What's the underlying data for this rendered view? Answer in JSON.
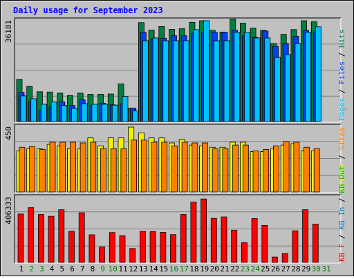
{
  "chart_data": {
    "type": "bar",
    "title": "Daily usage for September 2023",
    "categories": [
      "1",
      "2",
      "3",
      "4",
      "5",
      "6",
      "7",
      "8",
      "9",
      "10",
      "11",
      "12",
      "13",
      "14",
      "15",
      "16",
      "17",
      "18",
      "19",
      "20",
      "21",
      "22",
      "23",
      "24",
      "25",
      "26",
      "27",
      "28",
      "29",
      "30",
      "31"
    ],
    "weekend_days": [
      "2",
      "3",
      "9",
      "10",
      "16",
      "17",
      "23",
      "24",
      "30",
      "31"
    ],
    "panels": [
      {
        "id": "hits",
        "max_label": "36181",
        "ymax": 36181,
        "right_label": [
          {
            "text": "Pages",
            "color": "#00c0ff"
          },
          {
            "text": " / ",
            "color": "#000000"
          },
          {
            "text": "Files",
            "color": "#0040ff"
          },
          {
            "text": " / ",
            "color": "#000000"
          },
          {
            "text": "Hits",
            "color": "#008040"
          }
        ],
        "series": [
          {
            "name": "Hits",
            "color": "#008040",
            "values": [
              15100,
              12600,
              10700,
              10600,
              10200,
              9300,
              10200,
              9800,
              9800,
              9900,
              13500,
              4800,
              35500,
              32800,
              34100,
              33100,
              33300,
              35600,
              36181,
              32700,
              32100,
              36700,
              35300,
              33500,
              32700,
              28000,
              31300,
              33000,
              36181,
              35800,
              0
            ]
          },
          {
            "name": "Files",
            "color": "#0040ff",
            "values": [
              10500,
              7000,
              4000,
              5200,
              7000,
              5800,
              7800,
              5700,
              6600,
              6000,
              6300,
              4800,
              32000,
              29400,
              29900,
              30800,
              30800,
              31700,
              32000,
              32000,
              32000,
              32700,
              30800,
              30200,
              32500,
              27000,
              28000,
              30600,
              32700,
              32000,
              0
            ]
          },
          {
            "name": "Pages",
            "color": "#00c0ff",
            "values": [
              9200,
              8200,
              6200,
              7000,
              5800,
              4700,
              6400,
              6200,
              6200,
              5900,
              9000,
              3800,
              29000,
              30000,
              29000,
              29000,
              29000,
              33000,
              36181,
              29000,
              29000,
              32000,
              32000,
              30000,
              30000,
              23000,
              24000,
              28000,
              32000,
              34000,
              0
            ]
          }
        ]
      },
      {
        "id": "visits",
        "max_label": "450",
        "ymax": 450,
        "right_label": [
          {
            "text": "Visits",
            "color": "#f0f000"
          },
          {
            "text": " / ",
            "color": "#000000"
          },
          {
            "text": "Sites",
            "color": "#ff8000"
          }
        ],
        "series": [
          {
            "name": "Visits",
            "color": "#f0f000",
            "values": [
              285,
              300,
              300,
              330,
              320,
              300,
              300,
              375,
              320,
              375,
              375,
              450,
              410,
              375,
              375,
              340,
              365,
              325,
              320,
              310,
              310,
              345,
              345,
              280,
              280,
              300,
              325,
              335,
              285,
              285,
              0
            ]
          },
          {
            "name": "Sites",
            "color": "#ff8000",
            "values": [
              310,
              315,
              295,
              345,
              345,
              345,
              340,
              345,
              300,
              300,
              300,
              360,
              360,
              345,
              345,
              320,
              345,
              340,
              340,
              300,
              300,
              325,
              325,
              285,
              295,
              320,
              350,
              345,
              310,
              300,
              0
            ]
          }
        ]
      },
      {
        "id": "kbytes",
        "max_label": "406333",
        "ymax": 406333,
        "right_label": [
          {
            "text": "KB F",
            "color": "#ff0000"
          },
          {
            "text": " / ",
            "color": "#000000"
          },
          {
            "text": "KB In",
            "color": "#0080c0"
          },
          {
            "text": " / ",
            "color": "#000000"
          },
          {
            "text": "KB Out",
            "color": "#00c000"
          }
        ],
        "series": [
          {
            "name": "KB F",
            "color": "#ff0000",
            "values": [
              303000,
              343000,
              300000,
              289000,
              330000,
              195000,
              311000,
              173000,
              96000,
              187000,
              167000,
              87000,
              194000,
              193000,
              188000,
              174000,
              300000,
              378000,
              397000,
              276000,
              285000,
              202000,
              124000,
              275000,
              232000,
              34000,
              56000,
              198000,
              330000,
              240000,
              0
            ]
          }
        ]
      }
    ],
    "legend_placement": "right (rotated)",
    "grid": true
  }
}
